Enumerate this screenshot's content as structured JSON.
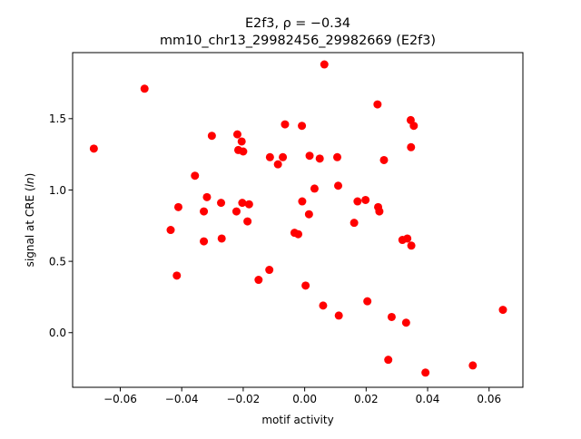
{
  "chart_data": {
    "type": "scatter",
    "title_line1": "E2f3, ρ = −0.34",
    "title_line2": "mm10_chr13_29982456_29982669 (E2f3)",
    "xlabel": "motif activity",
    "ylabel": "signal at CRE (ln)",
    "xlim": [
      -0.0755,
      0.071
    ],
    "ylim": [
      -0.383,
      1.963
    ],
    "xticks": [
      {
        "value": -0.06,
        "label": "−0.06"
      },
      {
        "value": -0.04,
        "label": "−0.04"
      },
      {
        "value": -0.02,
        "label": "−0.02"
      },
      {
        "value": 0.0,
        "label": "0.00"
      },
      {
        "value": 0.02,
        "label": "0.02"
      },
      {
        "value": 0.04,
        "label": "0.04"
      },
      {
        "value": 0.06,
        "label": "0.06"
      }
    ],
    "yticks": [
      {
        "value": 0.0,
        "label": "0.0"
      },
      {
        "value": 0.5,
        "label": "0.5"
      },
      {
        "value": 1.0,
        "label": "1.0"
      },
      {
        "value": 1.5,
        "label": "1.5"
      }
    ],
    "grid": false,
    "marker_color": "#ff0000",
    "points": [
      {
        "x": -0.0686,
        "y": 1.29
      },
      {
        "x": -0.0521,
        "y": 1.71
      },
      {
        "x": -0.0436,
        "y": 0.72
      },
      {
        "x": -0.0416,
        "y": 0.4
      },
      {
        "x": -0.0411,
        "y": 0.88
      },
      {
        "x": -0.0357,
        "y": 1.1
      },
      {
        "x": -0.0328,
        "y": 0.85
      },
      {
        "x": -0.0328,
        "y": 0.64
      },
      {
        "x": -0.0318,
        "y": 0.95
      },
      {
        "x": -0.0302,
        "y": 1.38
      },
      {
        "x": -0.0272,
        "y": 0.91
      },
      {
        "x": -0.027,
        "y": 0.66
      },
      {
        "x": -0.0222,
        "y": 0.85
      },
      {
        "x": -0.0219,
        "y": 1.39
      },
      {
        "x": -0.0216,
        "y": 1.28
      },
      {
        "x": -0.0205,
        "y": 1.34
      },
      {
        "x": -0.0203,
        "y": 0.91
      },
      {
        "x": -0.02,
        "y": 1.27
      },
      {
        "x": -0.0186,
        "y": 0.78
      },
      {
        "x": -0.0181,
        "y": 0.9
      },
      {
        "x": -0.015,
        "y": 0.37
      },
      {
        "x": -0.0115,
        "y": 0.44
      },
      {
        "x": -0.0113,
        "y": 1.23
      },
      {
        "x": -0.0087,
        "y": 1.18
      },
      {
        "x": -0.0071,
        "y": 1.23
      },
      {
        "x": -0.0064,
        "y": 1.46
      },
      {
        "x": -0.0033,
        "y": 0.7
      },
      {
        "x": -0.0021,
        "y": 0.69
      },
      {
        "x": -0.0009,
        "y": 1.45
      },
      {
        "x": -0.0008,
        "y": 0.92
      },
      {
        "x": 0.0003,
        "y": 0.33
      },
      {
        "x": 0.0014,
        "y": 0.83
      },
      {
        "x": 0.0016,
        "y": 1.24
      },
      {
        "x": 0.0032,
        "y": 1.01
      },
      {
        "x": 0.0049,
        "y": 1.22
      },
      {
        "x": 0.006,
        "y": 0.19
      },
      {
        "x": 0.0064,
        "y": 1.88
      },
      {
        "x": 0.0106,
        "y": 1.23
      },
      {
        "x": 0.0109,
        "y": 1.03
      },
      {
        "x": 0.0111,
        "y": 0.12
      },
      {
        "x": 0.0161,
        "y": 0.77
      },
      {
        "x": 0.0172,
        "y": 0.92
      },
      {
        "x": 0.0198,
        "y": 0.93
      },
      {
        "x": 0.0204,
        "y": 0.22
      },
      {
        "x": 0.0237,
        "y": 1.6
      },
      {
        "x": 0.0239,
        "y": 0.88
      },
      {
        "x": 0.0243,
        "y": 0.85
      },
      {
        "x": 0.0258,
        "y": 1.21
      },
      {
        "x": 0.0272,
        "y": -0.19
      },
      {
        "x": 0.0283,
        "y": 0.11
      },
      {
        "x": 0.0318,
        "y": 0.65
      },
      {
        "x": 0.033,
        "y": 0.07
      },
      {
        "x": 0.0334,
        "y": 0.66
      },
      {
        "x": 0.0345,
        "y": 1.49
      },
      {
        "x": 0.0346,
        "y": 1.3
      },
      {
        "x": 0.0347,
        "y": 0.61
      },
      {
        "x": 0.0355,
        "y": 1.45
      },
      {
        "x": 0.0393,
        "y": -0.28
      },
      {
        "x": 0.0547,
        "y": -0.23
      },
      {
        "x": 0.0645,
        "y": 0.16
      }
    ]
  }
}
